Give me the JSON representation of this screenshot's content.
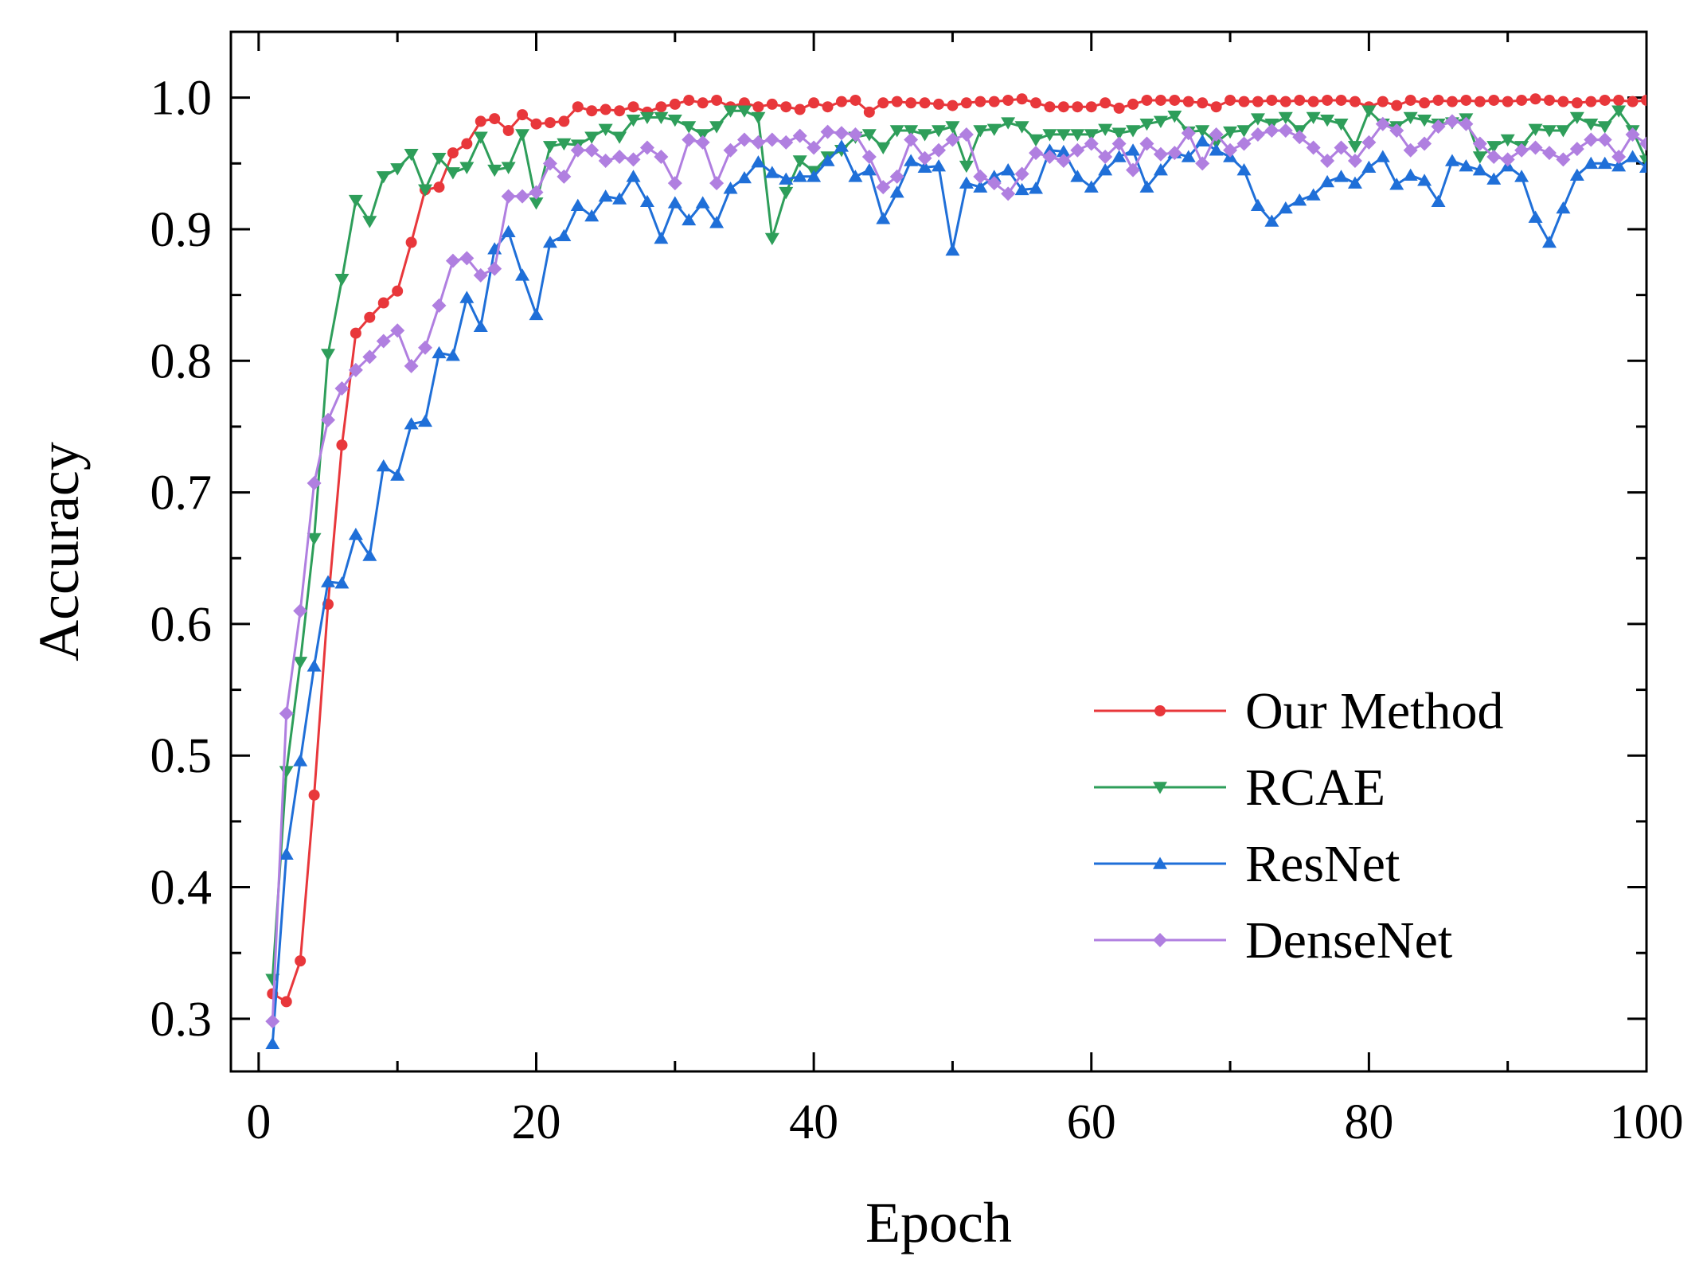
{
  "chart_data": {
    "type": "line",
    "title": "",
    "xlabel": "Epoch",
    "ylabel": "Accuracy",
    "xlim": [
      -2,
      100
    ],
    "ylim": [
      0.26,
      1.05
    ],
    "xticks": [
      0,
      20,
      40,
      60,
      80,
      100
    ],
    "yticks": [
      0.3,
      0.4,
      0.5,
      0.6,
      0.7,
      0.8,
      0.9,
      1.0
    ],
    "xtick_labels": [
      "0",
      "20",
      "40",
      "60",
      "80",
      "100"
    ],
    "ytick_labels": [
      "0.3",
      "0.4",
      "0.5",
      "0.6",
      "0.7",
      "0.8",
      "0.9",
      "1.0"
    ],
    "grid": false,
    "legend_position": "bottom-right",
    "x": [
      1,
      2,
      3,
      4,
      5,
      6,
      7,
      8,
      9,
      10,
      11,
      12,
      13,
      14,
      15,
      16,
      17,
      18,
      19,
      20,
      21,
      22,
      23,
      24,
      25,
      26,
      27,
      28,
      29,
      30,
      31,
      32,
      33,
      34,
      35,
      36,
      37,
      38,
      39,
      40,
      41,
      42,
      43,
      44,
      45,
      46,
      47,
      48,
      49,
      50,
      51,
      52,
      53,
      54,
      55,
      56,
      57,
      58,
      59,
      60,
      61,
      62,
      63,
      64,
      65,
      66,
      67,
      68,
      69,
      70,
      71,
      72,
      73,
      74,
      75,
      76,
      77,
      78,
      79,
      80,
      81,
      82,
      83,
      84,
      85,
      86,
      87,
      88,
      89,
      90,
      91,
      92,
      93,
      94,
      95,
      96,
      97,
      98,
      99,
      100
    ],
    "series": [
      {
        "name": "Our Method",
        "color": "#e8373b",
        "marker": "circle",
        "values": [
          0.319,
          0.313,
          0.344,
          0.47,
          0.615,
          0.736,
          0.821,
          0.833,
          0.844,
          0.853,
          0.89,
          0.93,
          0.932,
          0.958,
          0.965,
          0.982,
          0.984,
          0.975,
          0.987,
          0.98,
          0.981,
          0.982,
          0.993,
          0.99,
          0.991,
          0.99,
          0.993,
          0.989,
          0.993,
          0.995,
          0.998,
          0.996,
          0.998,
          0.993,
          0.996,
          0.993,
          0.995,
          0.993,
          0.991,
          0.996,
          0.993,
          0.997,
          0.998,
          0.989,
          0.996,
          0.997,
          0.996,
          0.996,
          0.995,
          0.994,
          0.996,
          0.997,
          0.997,
          0.998,
          0.999,
          0.996,
          0.993,
          0.993,
          0.993,
          0.993,
          0.996,
          0.992,
          0.995,
          0.998,
          0.998,
          0.998,
          0.997,
          0.996,
          0.993,
          0.998,
          0.997,
          0.997,
          0.998,
          0.997,
          0.998,
          0.997,
          0.998,
          0.998,
          0.997,
          0.993,
          0.997,
          0.994,
          0.998,
          0.996,
          0.998,
          0.997,
          0.998,
          0.997,
          0.998,
          0.997,
          0.998,
          0.999,
          0.998,
          0.997,
          0.996,
          0.997,
          0.998,
          0.998,
          0.997,
          0.998
        ]
      },
      {
        "name": "RCAE",
        "color": "#2e9e5a",
        "marker": "triangle-down",
        "values": [
          0.33,
          0.488,
          0.571,
          0.665,
          0.805,
          0.862,
          0.922,
          0.906,
          0.94,
          0.946,
          0.957,
          0.93,
          0.954,
          0.943,
          0.947,
          0.97,
          0.945,
          0.947,
          0.972,
          0.92,
          0.963,
          0.965,
          0.964,
          0.97,
          0.976,
          0.97,
          0.983,
          0.985,
          0.985,
          0.983,
          0.978,
          0.972,
          0.978,
          0.99,
          0.99,
          0.985,
          0.893,
          0.928,
          0.952,
          0.944,
          0.955,
          0.96,
          0.97,
          0.972,
          0.962,
          0.975,
          0.975,
          0.972,
          0.975,
          0.978,
          0.948,
          0.975,
          0.976,
          0.981,
          0.978,
          0.968,
          0.972,
          0.972,
          0.972,
          0.972,
          0.976,
          0.973,
          0.975,
          0.98,
          0.982,
          0.986,
          0.974,
          0.975,
          0.966,
          0.974,
          0.975,
          0.984,
          0.98,
          0.985,
          0.975,
          0.985,
          0.983,
          0.98,
          0.963,
          0.99,
          0.98,
          0.978,
          0.985,
          0.983,
          0.98,
          0.981,
          0.984,
          0.955,
          0.963,
          0.968,
          0.963,
          0.976,
          0.975,
          0.975,
          0.985,
          0.98,
          0.978,
          0.99,
          0.975,
          0.952
        ]
      },
      {
        "name": "ResNet",
        "color": "#1f6fd8",
        "marker": "triangle-up",
        "values": [
          0.281,
          0.425,
          0.496,
          0.568,
          0.632,
          0.631,
          0.668,
          0.652,
          0.72,
          0.713,
          0.752,
          0.754,
          0.806,
          0.804,
          0.848,
          0.826,
          0.885,
          0.898,
          0.865,
          0.835,
          0.89,
          0.895,
          0.918,
          0.91,
          0.925,
          0.923,
          0.94,
          0.921,
          0.893,
          0.92,
          0.907,
          0.92,
          0.905,
          0.931,
          0.939,
          0.951,
          0.943,
          0.938,
          0.94,
          0.94,
          0.952,
          0.963,
          0.94,
          0.945,
          0.908,
          0.928,
          0.952,
          0.947,
          0.948,
          0.884,
          0.935,
          0.932,
          0.94,
          0.945,
          0.93,
          0.931,
          0.96,
          0.959,
          0.94,
          0.932,
          0.945,
          0.955,
          0.96,
          0.932,
          0.945,
          0.958,
          0.955,
          0.967,
          0.96,
          0.955,
          0.945,
          0.918,
          0.906,
          0.916,
          0.922,
          0.926,
          0.936,
          0.94,
          0.935,
          0.947,
          0.955,
          0.934,
          0.941,
          0.937,
          0.921,
          0.952,
          0.948,
          0.945,
          0.938,
          0.948,
          0.94,
          0.909,
          0.89,
          0.916,
          0.941,
          0.95,
          0.95,
          0.948,
          0.955,
          0.947
        ]
      },
      {
        "name": "DenseNet",
        "color": "#b07fe0",
        "marker": "diamond",
        "values": [
          0.298,
          0.532,
          0.61,
          0.707,
          0.755,
          0.779,
          0.793,
          0.803,
          0.815,
          0.823,
          0.796,
          0.81,
          0.842,
          0.876,
          0.878,
          0.865,
          0.87,
          0.925,
          0.925,
          0.928,
          0.95,
          0.94,
          0.96,
          0.96,
          0.952,
          0.955,
          0.953,
          0.962,
          0.955,
          0.935,
          0.968,
          0.966,
          0.935,
          0.96,
          0.968,
          0.966,
          0.968,
          0.966,
          0.971,
          0.962,
          0.974,
          0.973,
          0.972,
          0.955,
          0.932,
          0.94,
          0.968,
          0.954,
          0.96,
          0.968,
          0.972,
          0.94,
          0.935,
          0.927,
          0.942,
          0.958,
          0.955,
          0.952,
          0.96,
          0.965,
          0.955,
          0.965,
          0.945,
          0.965,
          0.957,
          0.958,
          0.973,
          0.95,
          0.972,
          0.96,
          0.965,
          0.972,
          0.975,
          0.975,
          0.97,
          0.962,
          0.952,
          0.962,
          0.952,
          0.966,
          0.98,
          0.975,
          0.96,
          0.965,
          0.978,
          0.982,
          0.98,
          0.965,
          0.955,
          0.953,
          0.96,
          0.962,
          0.958,
          0.953,
          0.961,
          0.968,
          0.968,
          0.955,
          0.972,
          0.965
        ]
      }
    ]
  }
}
